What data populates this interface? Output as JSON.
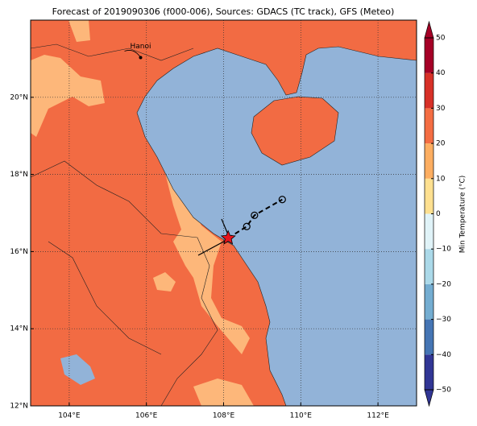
{
  "chart_data": {
    "type": "map",
    "title": "Forecast of 2019090306 (f000-006), Sources: GDACS (TC track), GFS (Meteo)",
    "xlim": [
      103,
      113
    ],
    "ylim": [
      12,
      22
    ],
    "xticks": [
      {
        "value": 104,
        "label": "104°E"
      },
      {
        "value": 106,
        "label": "106°E"
      },
      {
        "value": 108,
        "label": "108°E"
      },
      {
        "value": 110,
        "label": "110°E"
      },
      {
        "value": 112,
        "label": "112°E"
      }
    ],
    "yticks": [
      {
        "value": 12,
        "label": "12°N"
      },
      {
        "value": 14,
        "label": "14°N"
      },
      {
        "value": 16,
        "label": "16°N"
      },
      {
        "value": 18,
        "label": "18°N"
      },
      {
        "value": 20,
        "label": "20°N"
      }
    ],
    "grid": true,
    "city": {
      "name": "Hanoi",
      "lon": 105.85,
      "lat": 21.03
    },
    "track": {
      "lon": [
        108.12,
        108.6,
        108.8,
        109.52
      ],
      "lat": [
        16.35,
        16.65,
        16.94,
        17.35
      ]
    },
    "colorbar": {
      "label": "Min Temperature (°C)",
      "ticks": [
        {
          "value": -50,
          "label": "−50"
        },
        {
          "value": -40,
          "label": "−40"
        },
        {
          "value": -30,
          "label": "−30"
        },
        {
          "value": -20,
          "label": "−20"
        },
        {
          "value": -10,
          "label": "−10"
        },
        0,
        10,
        20,
        30,
        40,
        50
      ],
      "colors": [
        "#313695",
        "#4575b4",
        "#74add1",
        "#abd9e9",
        "#e0f3f8",
        "#fee090",
        "#fdae61",
        "#f46d43",
        "#d73027",
        "#a50026"
      ]
    }
  }
}
